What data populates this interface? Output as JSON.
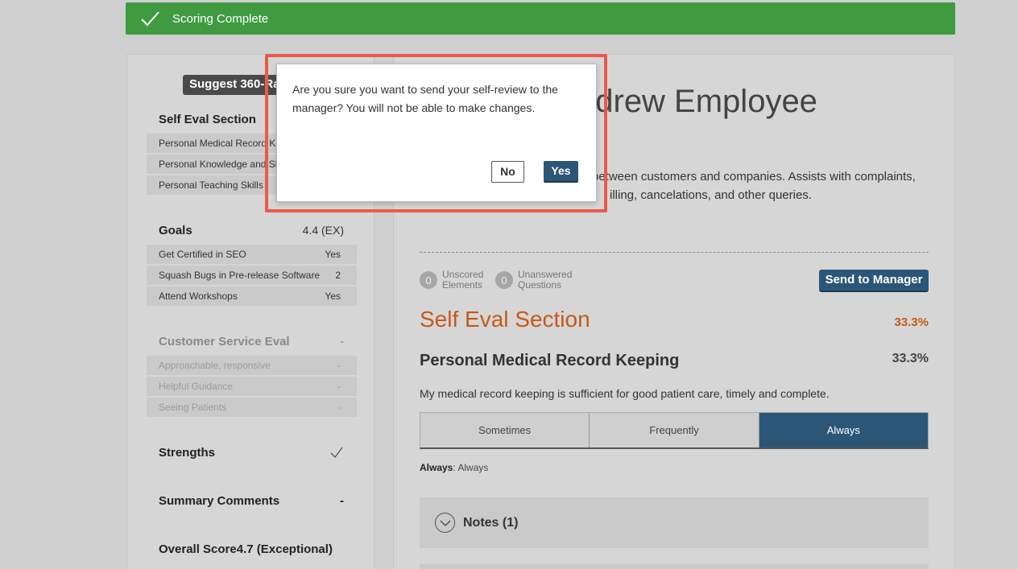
{
  "banner": {
    "text": "Scoring Complete",
    "color": "#3f9a40"
  },
  "sidebar": {
    "suggest_button": "Suggest 360-Ra",
    "self_eval": {
      "title": "Self Eval Section",
      "items": [
        {
          "label": "Personal Medical Record Ke"
        },
        {
          "label": "Personal Knowledge and Sk"
        },
        {
          "label": "Personal Teaching Skills"
        }
      ]
    },
    "goals": {
      "title": "Goals",
      "score": "4.4 (EX)",
      "items": [
        {
          "label": "Get Certified in SEO",
          "value": "Yes"
        },
        {
          "label": "Squash Bugs in Pre-release Software",
          "value": "2"
        },
        {
          "label": "Attend Workshops",
          "value": "Yes"
        }
      ]
    },
    "customer_service": {
      "title": "Customer Service Eval",
      "score": "-",
      "items": [
        {
          "label": "Approachable, responsive",
          "value": "-"
        },
        {
          "label": "Helpful Guidance",
          "value": "-"
        },
        {
          "label": "Seeing Patients",
          "value": "-"
        }
      ]
    },
    "strengths": {
      "title": "Strengths",
      "icon": "check-icon"
    },
    "summary_comments": {
      "title": "Summary Comments",
      "value": "-"
    },
    "overall_score": {
      "title": "Overall Score",
      "value": "4.7 (Exceptional)"
    }
  },
  "main": {
    "employee_name": "ndrew Employee",
    "description_line1": "between customers and companies. Assists with complaints,",
    "description_line2": "illing, cancelations, and other queries.",
    "unscored": {
      "count": "0",
      "label_line1": "Unscored",
      "label_line2": "Elements"
    },
    "unanswered": {
      "count": "0",
      "label_line1": "Unanswered",
      "label_line2": "Questions"
    },
    "send_button": "Send to Manager",
    "section_title": "Self Eval Section",
    "section_pct": "33.3%",
    "question_title": "Personal Medical Record Keeping",
    "question_pct": "33.3%",
    "question_text": "My medical record keeping is sufficient for good patient care, timely and complete.",
    "options": [
      "Sometimes",
      "Frequently",
      "Always"
    ],
    "selected_option": "Always",
    "answer_label": "Always",
    "answer_value": ": Always",
    "notes_label": "Notes (1)",
    "accent_color": "#c45a1a",
    "primary_color": "#2c5678"
  },
  "dialog": {
    "message": "Are you sure you want to send your self-review to the manager? You will not be able to make changes.",
    "no_label": "No",
    "yes_label": "Yes",
    "highlight_color": "#ea5a4a"
  }
}
